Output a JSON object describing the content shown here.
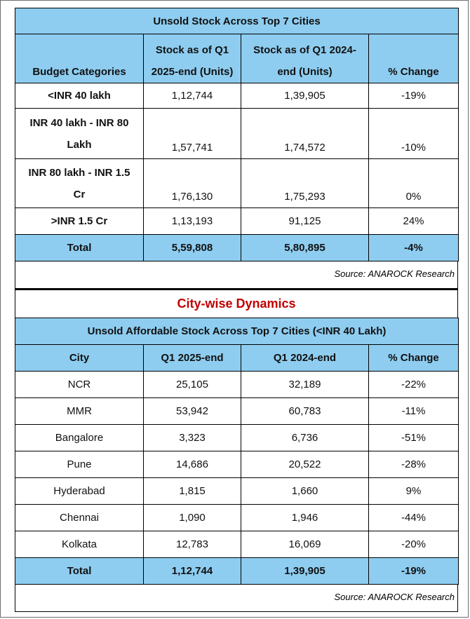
{
  "table1": {
    "title": "Unsold Stock Across Top 7 Cities",
    "headers": [
      "Budget Categories",
      "Stock as of Q1 2025-end (Units)",
      "Stock as of Q1 2024-end (Units)",
      "% Change"
    ],
    "header_lines": [
      [
        "",
        "Budget Categories"
      ],
      [
        "Stock as of Q1",
        "2025-end (Units)"
      ],
      [
        "Stock as of Q1 2024-",
        "end (Units)"
      ],
      [
        "",
        "% Change"
      ]
    ],
    "rows": [
      {
        "category": "<INR 40 lakh",
        "q1_2025": "1,12,744",
        "q1_2024": "1,39,905",
        "change": "-19%"
      },
      {
        "category": "INR 40 lakh - INR 80 Lakh",
        "category_lines": [
          "INR 40 lakh - INR 80",
          "Lakh"
        ],
        "q1_2025": "1,57,741",
        "q1_2024": "1,74,572",
        "change": "-10%"
      },
      {
        "category": "INR 80 lakh - INR 1.5 Cr",
        "category_lines": [
          "INR 80 lakh - INR 1.5",
          "Cr"
        ],
        "q1_2025": "1,76,130",
        "q1_2024": "1,75,293",
        "change": "0%"
      },
      {
        "category": ">INR 1.5 Cr",
        "q1_2025": "1,13,193",
        "q1_2024": "91,125",
        "change": "24%"
      }
    ],
    "total": {
      "label": "Total",
      "q1_2025": "5,59,808",
      "q1_2024": "5,80,895",
      "change": "-4%"
    },
    "source": "Source: ANAROCK Research"
  },
  "section_title": "City-wise Dynamics",
  "table2": {
    "title": "Unsold Affordable Stock Across Top 7 Cities (<INR 40 Lakh)",
    "headers": [
      "City",
      "Q1 2025-end",
      "Q1 2024-end",
      "% Change"
    ],
    "rows": [
      {
        "city": "NCR",
        "q1_2025": "25,105",
        "q1_2024": "32,189",
        "change": "-22%"
      },
      {
        "city": "MMR",
        "q1_2025": "53,942",
        "q1_2024": "60,783",
        "change": "-11%"
      },
      {
        "city": "Bangalore",
        "q1_2025": "3,323",
        "q1_2024": "6,736",
        "change": "-51%"
      },
      {
        "city": "Pune",
        "q1_2025": "14,686",
        "q1_2024": "20,522",
        "change": "-28%"
      },
      {
        "city": "Hyderabad",
        "q1_2025": "1,815",
        "q1_2024": "1,660",
        "change": "9%"
      },
      {
        "city": "Chennai",
        "q1_2025": "1,090",
        "q1_2024": "1,946",
        "change": "-44%"
      },
      {
        "city": "Kolkata",
        "q1_2025": "12,783",
        "q1_2024": "16,069",
        "change": "-20%"
      }
    ],
    "total": {
      "label": "Total",
      "q1_2025": "1,12,744",
      "q1_2024": "1,39,905",
      "change": "-19%"
    },
    "source": "Source: ANAROCK Research"
  },
  "colors": {
    "header_bg": "#8ecdf0",
    "section_title": "#c00000",
    "border": "#000000"
  }
}
